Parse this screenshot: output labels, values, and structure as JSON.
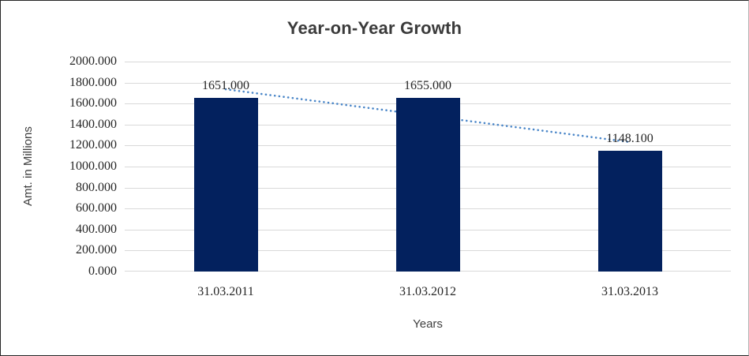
{
  "chart_data": {
    "type": "bar",
    "title": "Year-on-Year Growth",
    "xlabel": "Years",
    "ylabel": "Amt. in Millions",
    "categories": [
      "31.03.2011",
      "31.03.2012",
      "31.03.2013"
    ],
    "values": [
      1651.0,
      1655.0,
      1148.1
    ],
    "data_labels": [
      "1651.000",
      "1655.000",
      "1148.100"
    ],
    "ylim": [
      0,
      2000
    ],
    "ytick_labels": [
      "0.000",
      "200.000",
      "400.000",
      "600.000",
      "800.000",
      "1000.000",
      "1200.000",
      "1400.000",
      "1600.000",
      "1800.000",
      "2000.000"
    ],
    "grid": "horizontal-only",
    "legend": "none",
    "colors": {
      "bar": "#03215e",
      "gridline": "#d9d9d9",
      "trendline": "#4a86c8",
      "axis_text": "#262626",
      "title_text": "#3b3b3b"
    },
    "trendline": {
      "type": "linear",
      "style": "dotted",
      "values_at_first_and_last_category": [
        1736,
        1233
      ]
    }
  }
}
